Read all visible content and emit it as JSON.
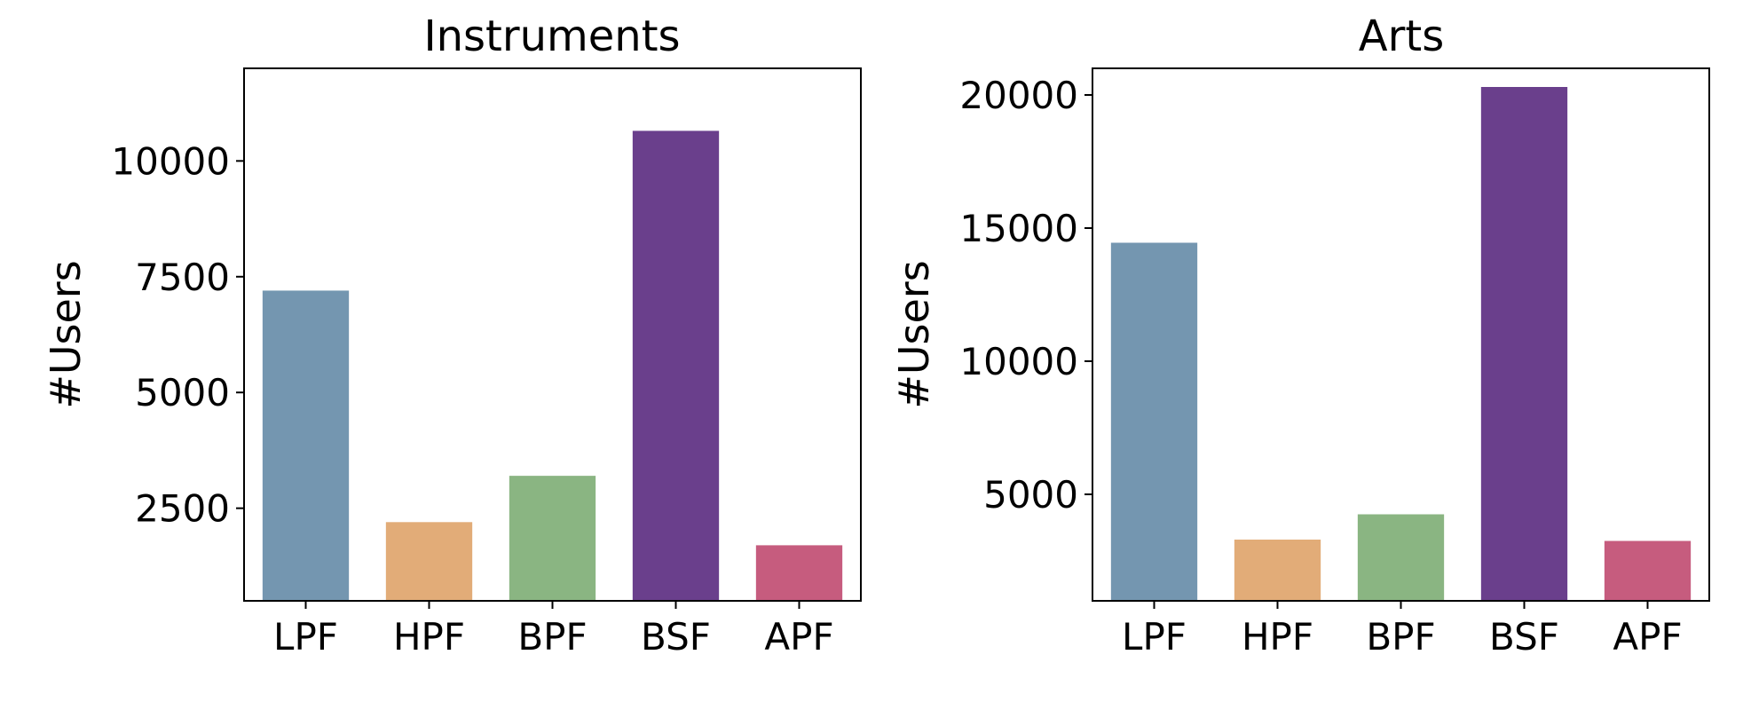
{
  "chart_data": [
    {
      "type": "bar",
      "title": "Instruments",
      "xlabel": "",
      "ylabel": "#Users",
      "categories": [
        "LPF",
        "HPF",
        "BPF",
        "BSF",
        "APF"
      ],
      "values": [
        7200,
        2200,
        3200,
        10650,
        1700
      ],
      "colors": [
        "#7496b0",
        "#e2ac78",
        "#8ab582",
        "#6a3f8c",
        "#c65c7e"
      ],
      "ylim": [
        500,
        12000
      ],
      "yticks": [
        2500,
        5000,
        7500,
        10000
      ],
      "ytick_labels": [
        "2500",
        "5000",
        "7500",
        "10000"
      ],
      "grid": false,
      "legend": "none"
    },
    {
      "type": "bar",
      "title": "Arts",
      "xlabel": "",
      "ylabel": "#Users",
      "categories": [
        "LPF",
        "HPF",
        "BPF",
        "BSF",
        "APF"
      ],
      "values": [
        14450,
        3300,
        4250,
        20300,
        3250
      ],
      "colors": [
        "#7496b0",
        "#e2ac78",
        "#8ab582",
        "#6a3f8c",
        "#c65c7e"
      ],
      "ylim": [
        1000,
        21000
      ],
      "yticks": [
        5000,
        10000,
        15000,
        20000
      ],
      "ytick_labels": [
        "5000",
        "10000",
        "15000",
        "20000"
      ],
      "grid": false,
      "legend": "none"
    }
  ]
}
